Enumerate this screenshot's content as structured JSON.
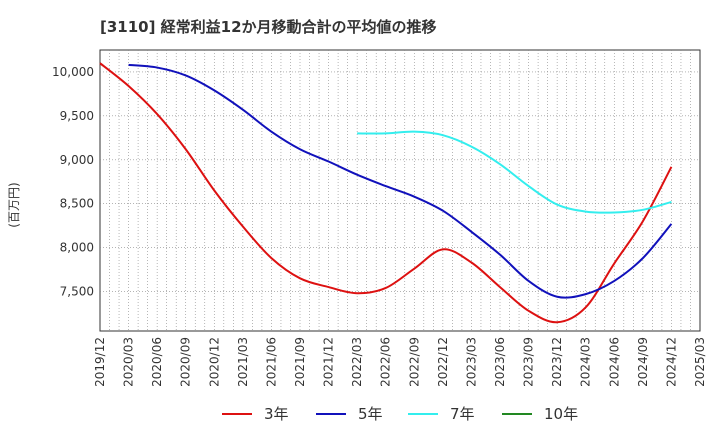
{
  "chart_data": {
    "type": "line",
    "title": "[3110]  経常利益12か月移動合計の平均値の推移",
    "ylabel": "(百万円)",
    "xlabel": "",
    "ylim": [
      7050,
      10250
    ],
    "yticks": [
      7500,
      8000,
      8500,
      9000,
      9500,
      10000
    ],
    "ytick_labels": [
      "7,500",
      "8,000",
      "8,500",
      "9,000",
      "9,500",
      "10,000"
    ],
    "xticks": [
      "2019/12",
      "2020/03",
      "2020/06",
      "2020/09",
      "2020/12",
      "2021/03",
      "2021/06",
      "2021/09",
      "2021/12",
      "2022/03",
      "2022/06",
      "2022/09",
      "2022/12",
      "2023/03",
      "2023/06",
      "2023/09",
      "2023/12",
      "2024/03",
      "2024/06",
      "2024/09",
      "2024/12",
      "2025/03"
    ],
    "grid": true,
    "legend_position": "bottom",
    "series": [
      {
        "name": "3年",
        "color": "#dd1111",
        "points": [
          [
            "2019/12",
            10100
          ],
          [
            "2020/03",
            9840
          ],
          [
            "2020/06",
            9520
          ],
          [
            "2020/09",
            9120
          ],
          [
            "2020/12",
            8650
          ],
          [
            "2021/03",
            8240
          ],
          [
            "2021/06",
            7880
          ],
          [
            "2021/09",
            7650
          ],
          [
            "2021/12",
            7550
          ],
          [
            "2022/03",
            7480
          ],
          [
            "2022/06",
            7540
          ],
          [
            "2022/09",
            7760
          ],
          [
            "2022/12",
            7980
          ],
          [
            "2023/03",
            7830
          ],
          [
            "2023/06",
            7550
          ],
          [
            "2023/09",
            7280
          ],
          [
            "2023/12",
            7150
          ],
          [
            "2024/03",
            7320
          ],
          [
            "2024/06",
            7820
          ],
          [
            "2024/09",
            8300
          ],
          [
            "2024/12",
            8920
          ]
        ]
      },
      {
        "name": "5年",
        "color": "#1111bb",
        "points": [
          [
            "2020/03",
            10080
          ],
          [
            "2020/06",
            10050
          ],
          [
            "2020/09",
            9960
          ],
          [
            "2020/12",
            9790
          ],
          [
            "2021/03",
            9570
          ],
          [
            "2021/06",
            9320
          ],
          [
            "2021/09",
            9120
          ],
          [
            "2021/12",
            8980
          ],
          [
            "2022/03",
            8830
          ],
          [
            "2022/06",
            8700
          ],
          [
            "2022/09",
            8580
          ],
          [
            "2022/12",
            8420
          ],
          [
            "2023/03",
            8180
          ],
          [
            "2023/06",
            7920
          ],
          [
            "2023/09",
            7620
          ],
          [
            "2023/12",
            7440
          ],
          [
            "2024/03",
            7470
          ],
          [
            "2024/06",
            7620
          ],
          [
            "2024/09",
            7880
          ],
          [
            "2024/12",
            8270
          ]
        ]
      },
      {
        "name": "7年",
        "color": "#33eeee",
        "points": [
          [
            "2022/03",
            9300
          ],
          [
            "2022/06",
            9300
          ],
          [
            "2022/09",
            9320
          ],
          [
            "2022/12",
            9280
          ],
          [
            "2023/03",
            9150
          ],
          [
            "2023/06",
            8950
          ],
          [
            "2023/09",
            8700
          ],
          [
            "2023/12",
            8490
          ],
          [
            "2024/03",
            8410
          ],
          [
            "2024/06",
            8400
          ],
          [
            "2024/09",
            8430
          ],
          [
            "2024/12",
            8520
          ]
        ]
      },
      {
        "name": "10年",
        "color": "#228822",
        "points": []
      }
    ]
  }
}
